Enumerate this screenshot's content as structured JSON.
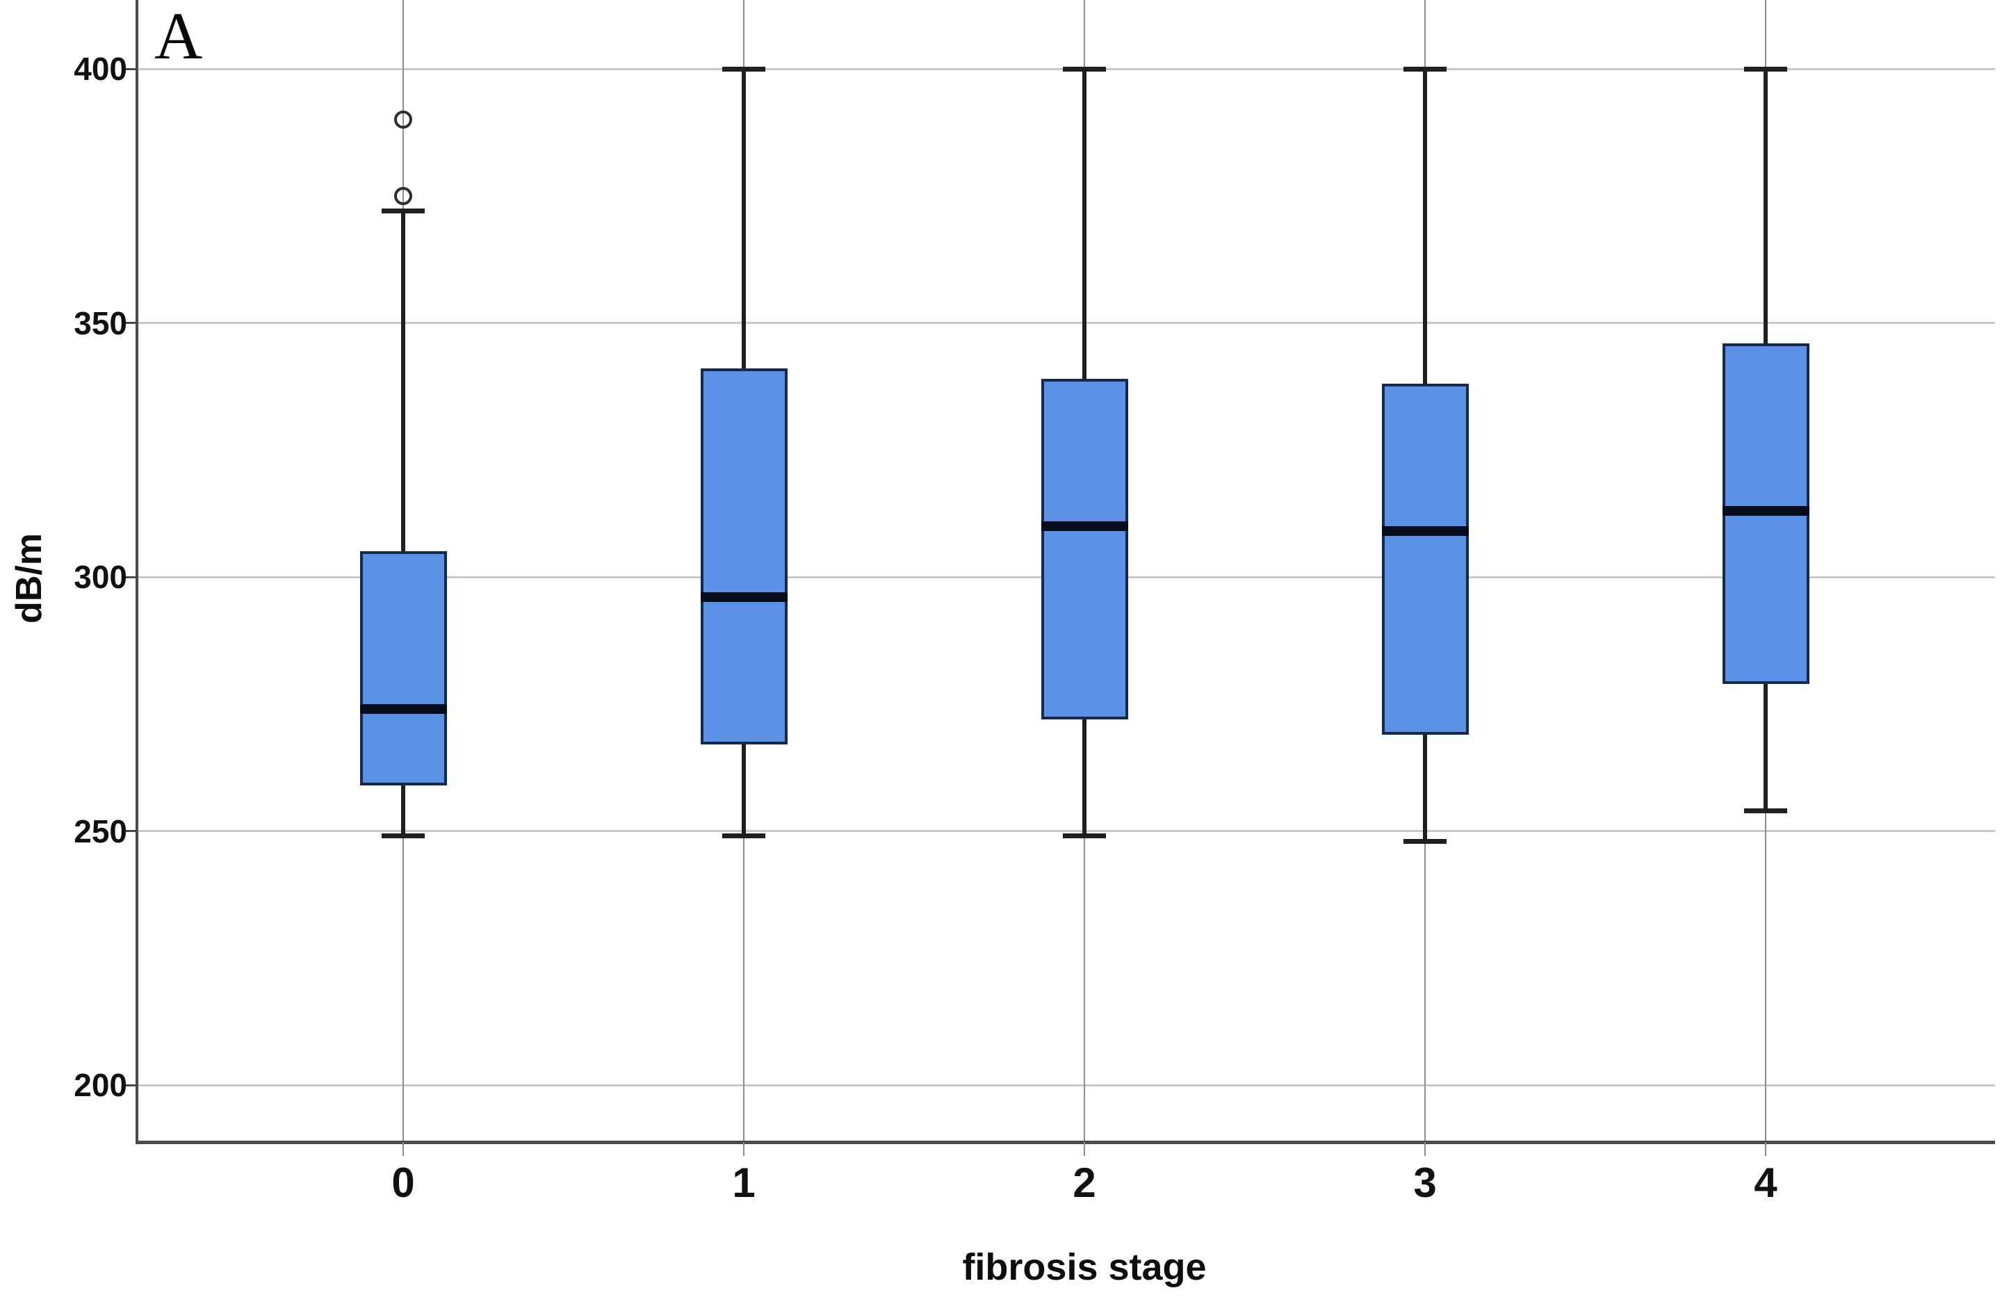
{
  "panel_label": "A",
  "axes": {
    "ylabel": "dB/m",
    "xlabel": "fibrosis stage"
  },
  "chart_data": {
    "type": "boxplot",
    "title": "",
    "xlabel": "fibrosis stage",
    "ylabel": "dB/m",
    "categories": [
      "0",
      "1",
      "2",
      "3",
      "4"
    ],
    "y_ticks": [
      400,
      350,
      300,
      250,
      200
    ],
    "ylim": [
      188,
      414
    ],
    "grid": "horizontal-light-plus-vertical-category-lines",
    "legend": "none",
    "series": [
      {
        "category": "0",
        "whisker_low": 249,
        "q1": 259,
        "median": 274,
        "q3": 305,
        "whisker_high": 372,
        "outliers": [
          375,
          390
        ]
      },
      {
        "category": "1",
        "whisker_low": 249,
        "q1": 267,
        "median": 296,
        "q3": 341,
        "whisker_high": 400,
        "outliers": []
      },
      {
        "category": "2",
        "whisker_low": 249,
        "q1": 272,
        "median": 310,
        "q3": 339,
        "whisker_high": 400,
        "outliers": []
      },
      {
        "category": "3",
        "whisker_low": 248,
        "q1": 269,
        "median": 309,
        "q3": 338,
        "whisker_high": 400,
        "outliers": []
      },
      {
        "category": "4",
        "whisker_low": 254,
        "q1": 279,
        "median": 313,
        "q3": 346,
        "whisker_high": 400,
        "outliers": []
      }
    ],
    "colors": {
      "box_fill": "#5b92e5",
      "box_border": "#16294d",
      "median": "#060d1c",
      "whisker": "#1f1f1f",
      "gridline": "#c9c9c9",
      "category_line": "#8e8e8e",
      "axis": "#4a4a4a",
      "outlier_ring": "#2e2e2e",
      "background": "#ffffff"
    }
  }
}
